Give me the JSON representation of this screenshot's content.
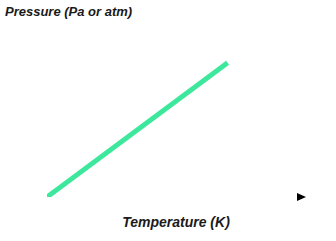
{
  "chart_data": {
    "type": "line",
    "xlabel": "Temperature (K)",
    "ylabel": "Pressure (Pa or atm)",
    "x": [
      0,
      70
    ],
    "values": [
      0,
      71
    ],
    "color": "#3de89c",
    "xlim": [
      0,
      100
    ],
    "ylim": [
      0,
      100
    ],
    "tick_labels": false,
    "grid": false
  }
}
